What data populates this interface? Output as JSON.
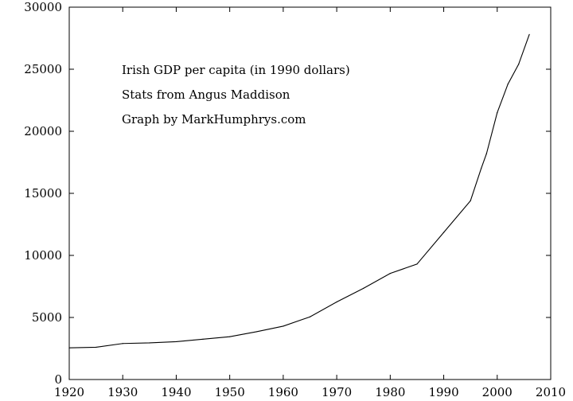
{
  "chart_data": {
    "type": "line",
    "annotations": [
      "Irish GDP per capita (in 1990 dollars)",
      "Stats from Angus Maddison",
      "Graph by MarkHumphrys.com"
    ],
    "xlim": [
      1920,
      2010
    ],
    "ylim": [
      0,
      30000
    ],
    "x_ticks": [
      "1920",
      "1930",
      "1940",
      "1950",
      "1960",
      "1970",
      "1980",
      "1990",
      "2000",
      "2010"
    ],
    "y_ticks": [
      "0",
      "5000",
      "10000",
      "15000",
      "20000",
      "25000",
      "30000"
    ],
    "grid": false,
    "series": [
      {
        "color": "#000000",
        "points": [
          [
            1920,
            2550
          ],
          [
            1925,
            2600
          ],
          [
            1930,
            2900
          ],
          [
            1935,
            2950
          ],
          [
            1940,
            3050
          ],
          [
            1945,
            3250
          ],
          [
            1950,
            3450
          ],
          [
            1955,
            3850
          ],
          [
            1960,
            4300
          ],
          [
            1965,
            5050
          ],
          [
            1970,
            6250
          ],
          [
            1975,
            7350
          ],
          [
            1980,
            8550
          ],
          [
            1985,
            9300
          ],
          [
            1990,
            11850
          ],
          [
            1995,
            14400
          ],
          [
            1997,
            17000
          ],
          [
            1998,
            18200
          ],
          [
            2000,
            21500
          ],
          [
            2002,
            23800
          ],
          [
            2004,
            25400
          ],
          [
            2006,
            27800
          ]
        ]
      }
    ]
  }
}
